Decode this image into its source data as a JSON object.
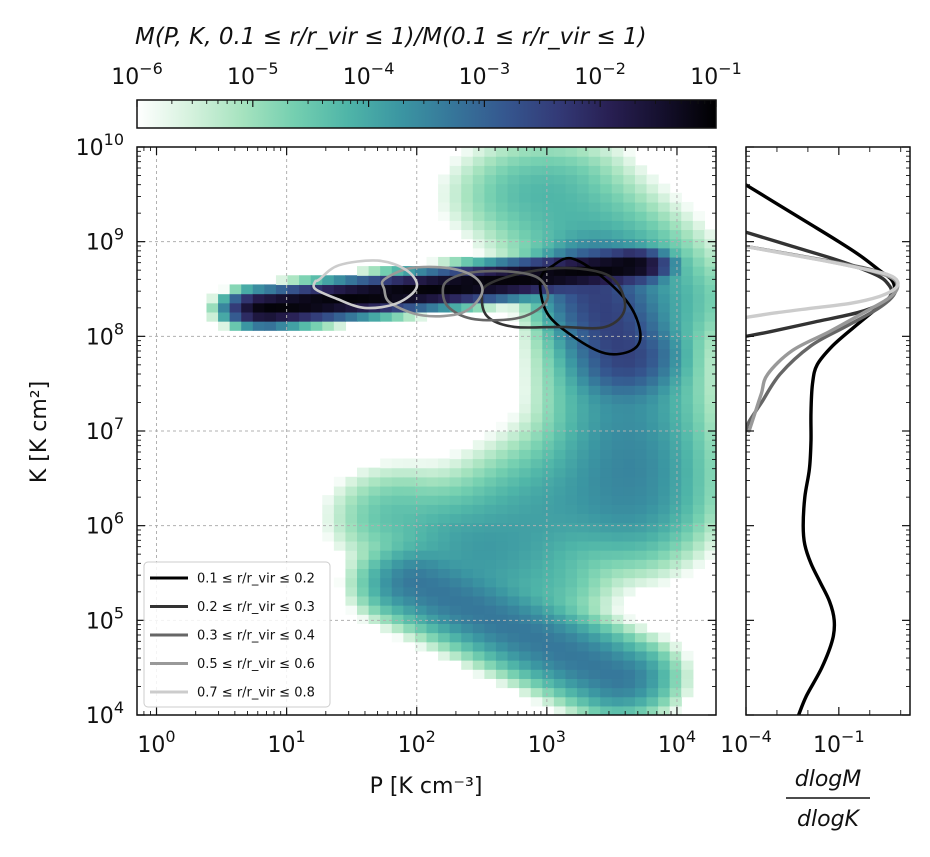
{
  "colorbar": {
    "label": "M(P, K, 0.1 ≤ r/r_vir ≤ 1)/M(0.1 ≤ r/r_vir ≤ 1)",
    "ticks": [
      {
        "base": "10",
        "exp": "−6",
        "value": 1e-06
      },
      {
        "base": "10",
        "exp": "−5",
        "value": 1e-05
      },
      {
        "base": "10",
        "exp": "−4",
        "value": 0.0001
      },
      {
        "base": "10",
        "exp": "−3",
        "value": 0.001
      },
      {
        "base": "10",
        "exp": "−2",
        "value": 0.01
      },
      {
        "base": "10",
        "exp": "−1",
        "value": 0.1
      }
    ],
    "colors": [
      "#ffffff",
      "#d6f2de",
      "#a6e3bf",
      "#74cfb0",
      "#4fb5a8",
      "#3b96a2",
      "#36769a",
      "#35578f",
      "#333a77",
      "#281f52",
      "#140f2c",
      "#000000"
    ]
  },
  "main_axes": {
    "xlabel": "P [K cm⁻³]",
    "ylabel": "K [K cm²]",
    "xlim_log10": [
      -0.15,
      4.3
    ],
    "ylim_log10": [
      4,
      10
    ],
    "xticks": [
      {
        "base": "10",
        "exp": "0",
        "value": 1
      },
      {
        "base": "10",
        "exp": "1",
        "value": 10
      },
      {
        "base": "10",
        "exp": "2",
        "value": 100
      },
      {
        "base": "10",
        "exp": "3",
        "value": 1000
      },
      {
        "base": "10",
        "exp": "4",
        "value": 10000
      }
    ],
    "yticks": [
      {
        "base": "10",
        "exp": "4",
        "value": 10000.0
      },
      {
        "base": "10",
        "exp": "5",
        "value": 100000.0
      },
      {
        "base": "10",
        "exp": "6",
        "value": 1000000.0
      },
      {
        "base": "10",
        "exp": "7",
        "value": 10000000.0
      },
      {
        "base": "10",
        "exp": "8",
        "value": 100000000.0
      },
      {
        "base": "10",
        "exp": "9",
        "value": 1000000000.0
      },
      {
        "base": "10",
        "exp": "10",
        "value": 10000000000.0
      }
    ],
    "grid": true
  },
  "side_axes": {
    "xlabel_num": "dlogM",
    "xlabel_den": "dlogK",
    "xlim_log10": [
      -4,
      1.3
    ],
    "xticks": [
      {
        "base": "10",
        "exp": "−4",
        "value": 0.0001
      },
      {
        "base": "10",
        "exp": "−1",
        "value": 0.1
      }
    ]
  },
  "legend": {
    "entries": [
      {
        "label": "0.1 ≤ r/r_vir ≤ 0.2",
        "color": "#000000"
      },
      {
        "label": "0.2 ≤ r/r_vir ≤ 0.3",
        "color": "#333333"
      },
      {
        "label": "0.3 ≤ r/r_vir ≤ 0.4",
        "color": "#666666"
      },
      {
        "label": "0.5 ≤ r/r_vir ≤ 0.6",
        "color": "#999999"
      },
      {
        "label": "0.7 ≤ r/r_vir ≤ 0.8",
        "color": "#cccccc"
      }
    ],
    "placement": "lower-left"
  },
  "chart_data": {
    "type": "heatmap",
    "x_scale": "log",
    "y_scale": "log",
    "x_range_log10_P": [
      -0.15,
      4.3
    ],
    "y_range_log10_K": [
      4,
      10
    ],
    "color_scale": "log",
    "color_range": [
      1e-06,
      0.1
    ],
    "description_of_components": "mass-weighted 2D histogram of gas pressure P vs entropy K",
    "heatmap_components": [
      {
        "type": "band",
        "lx": [
          0.85,
          3.65
        ],
        "ly": [
          8.3,
          8.75
        ],
        "sx": 0.1,
        "sy": 0.06,
        "peak_log10": -1.1
      },
      {
        "type": "band",
        "lx": [
          3.35,
          3.6
        ],
        "ly": [
          8.55,
          7.8
        ],
        "sx": 0.16,
        "sy": 0.18,
        "peak_log10": -2.5
      },
      {
        "type": "band",
        "lx": [
          3.55,
          3.65
        ],
        "ly": [
          8.5,
          6.3
        ],
        "sx": 0.25,
        "sy": 0.3,
        "peak_log10": -3.7
      },
      {
        "type": "band",
        "lx": [
          3.6,
          2.55
        ],
        "ly": [
          6.6,
          5.8
        ],
        "sx": 0.28,
        "sy": 0.32,
        "peak_log10": -3.9
      },
      {
        "type": "band",
        "lx": [
          2.0,
          3.55
        ],
        "ly": [
          5.4,
          4.4
        ],
        "sx": 0.17,
        "sy": 0.16,
        "peak_log10": -3.3
      },
      {
        "type": "band",
        "lx": [
          1.85,
          3.0
        ],
        "ly": [
          6.1,
          5.4
        ],
        "sx": 0.22,
        "sy": 0.22,
        "peak_log10": -4.4
      },
      {
        "type": "band",
        "lx": [
          3.0,
          3.8
        ],
        "ly": [
          9.5,
          8.4
        ],
        "sx": 0.3,
        "sy": 0.25,
        "peak_log10": -4.2
      }
    ],
    "contours": [
      {
        "name": "0.1 ≤ r/r_vir ≤ 0.2",
        "color": "#000000",
        "log10P": [
          3.05,
          3.2,
          3.45,
          3.65,
          3.72,
          3.65,
          3.45,
          3.2,
          3.0,
          2.95
        ],
        "log10K": [
          8.75,
          8.82,
          8.6,
          8.3,
          8.0,
          7.85,
          7.82,
          8.0,
          8.25,
          8.6
        ]
      },
      {
        "name": "0.2 ≤ r/r_vir ≤ 0.3",
        "color": "#333333",
        "log10P": [
          2.55,
          2.85,
          3.2,
          3.5,
          3.6,
          3.45,
          3.1,
          2.75,
          2.55,
          2.5
        ],
        "log10K": [
          8.55,
          8.68,
          8.72,
          8.62,
          8.3,
          8.1,
          8.1,
          8.1,
          8.2,
          8.4
        ]
      },
      {
        "name": "0.3 ≤ r/r_vir ≤ 0.4",
        "color": "#666666",
        "log10P": [
          2.25,
          2.45,
          2.75,
          2.95,
          3.0,
          2.8,
          2.45,
          2.25,
          2.2
        ],
        "log10K": [
          8.6,
          8.68,
          8.68,
          8.6,
          8.38,
          8.2,
          8.18,
          8.3,
          8.48
        ]
      },
      {
        "name": "0.5 ≤ r/r_vir ≤ 0.6",
        "color": "#999999",
        "log10P": [
          1.75,
          1.95,
          2.25,
          2.45,
          2.5,
          2.35,
          2.05,
          1.8,
          1.75
        ],
        "log10K": [
          8.6,
          8.72,
          8.72,
          8.62,
          8.45,
          8.25,
          8.22,
          8.35,
          8.5
        ]
      },
      {
        "name": "0.7 ≤ r/r_vir ≤ 0.8",
        "color": "#cccccc",
        "log10P": [
          1.25,
          1.4,
          1.7,
          1.92,
          2.0,
          1.85,
          1.6,
          1.38,
          1.22,
          1.22
        ],
        "log10K": [
          8.6,
          8.75,
          8.8,
          8.7,
          8.52,
          8.35,
          8.3,
          8.4,
          8.5,
          8.58
        ]
      }
    ],
    "profiles": [
      {
        "name": "0.1 ≤ r/r_vir ≤ 0.2",
        "color": "#000000",
        "log10K": [
          4.0,
          4.2,
          4.5,
          4.8,
          5.0,
          5.2,
          5.4,
          5.6,
          5.8,
          6.0,
          6.3,
          6.6,
          6.9,
          7.2,
          7.5,
          7.7,
          7.9,
          8.1,
          8.3,
          8.4,
          8.5,
          8.6,
          8.7,
          8.85,
          9.0,
          9.2,
          9.4,
          9.6
        ],
        "log10_dlogM": [
          -2.3,
          -2.05,
          -1.55,
          -1.2,
          -1.15,
          -1.3,
          -1.6,
          -1.9,
          -2.1,
          -2.15,
          -2.1,
          -1.95,
          -1.9,
          -1.9,
          -1.85,
          -1.7,
          -1.2,
          -0.5,
          0.25,
          0.65,
          0.8,
          0.7,
          0.3,
          -0.3,
          -1.0,
          -2.0,
          -3.0,
          -4.0
        ]
      },
      {
        "name": "0.2 ≤ r/r_vir ≤ 0.3",
        "color": "#333333",
        "log10K": [
          8.0,
          8.05,
          8.15,
          8.25,
          8.35,
          8.45,
          8.55,
          8.65,
          8.8,
          8.95,
          9.1
        ],
        "log10_dlogM": [
          -4.0,
          -3.2,
          -1.8,
          -0.4,
          0.4,
          0.7,
          0.6,
          0.2,
          -1.0,
          -2.5,
          -4.0
        ]
      },
      {
        "name": "0.3 ≤ r/r_vir ≤ 0.4",
        "color": "#666666",
        "log10K": [
          7.0,
          7.1,
          7.3,
          7.6,
          7.9,
          8.1,
          8.3,
          8.45,
          8.6,
          8.7,
          8.8,
          8.95
        ],
        "log10_dlogM": [
          -4.0,
          -3.9,
          -3.5,
          -2.9,
          -1.9,
          -0.8,
          0.3,
          0.8,
          0.8,
          0.1,
          -1.4,
          -4.0
        ]
      },
      {
        "name": "0.5 ≤ r/r_vir ≤ 0.6",
        "color": "#999999",
        "log10K": [
          7.0,
          7.2,
          7.4,
          7.6,
          7.85,
          8.05,
          8.25,
          8.4,
          8.52,
          8.62,
          8.72,
          8.82,
          8.95
        ],
        "log10_dlogM": [
          -3.9,
          -3.7,
          -3.5,
          -3.3,
          -2.5,
          -1.3,
          -0.2,
          0.6,
          0.9,
          0.7,
          -0.3,
          -1.8,
          -4.0
        ]
      },
      {
        "name": "0.7 ≤ r/r_vir ≤ 0.8",
        "color": "#cccccc",
        "log10K": [
          8.2,
          8.25,
          8.3,
          8.35,
          8.42,
          8.5,
          8.58,
          8.65,
          8.72,
          8.8,
          8.9,
          8.95
        ],
        "log10_dlogM": [
          -4.0,
          -3.0,
          -1.8,
          -0.6,
          0.3,
          0.8,
          0.9,
          0.6,
          -0.3,
          -1.5,
          -3.2,
          -4.0
        ]
      }
    ]
  }
}
